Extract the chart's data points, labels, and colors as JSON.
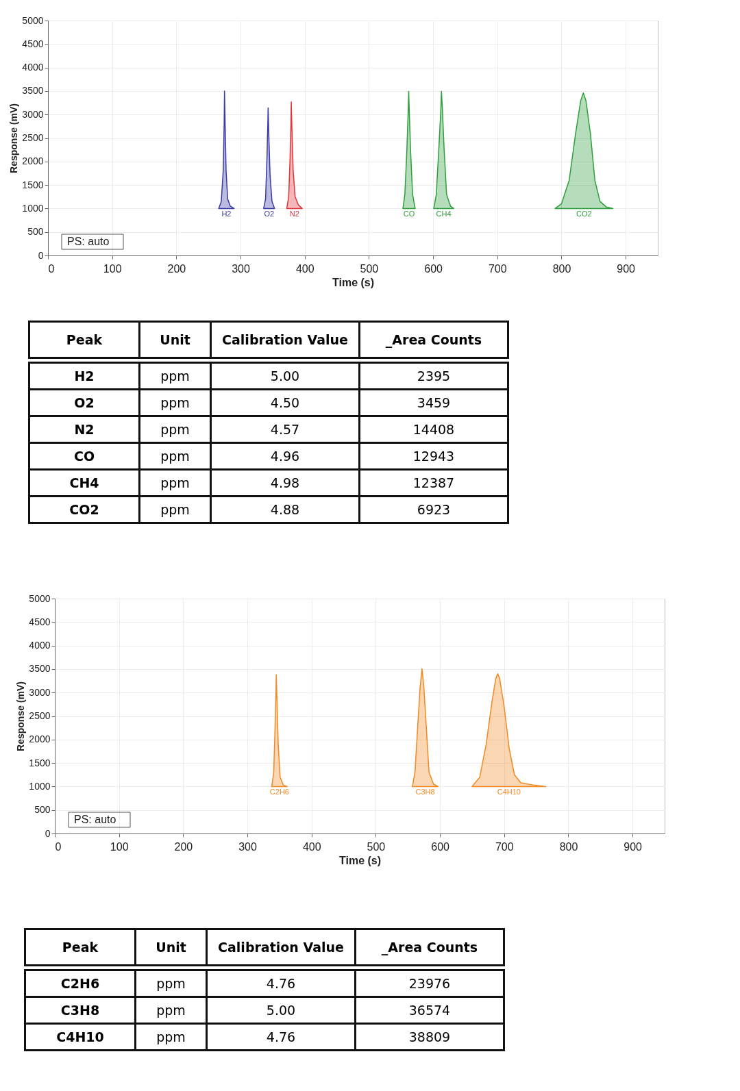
{
  "chart_data": [
    {
      "type": "area",
      "xlabel": "Time (s)",
      "ylabel": "Response (mV)",
      "xlim": [
        0,
        950
      ],
      "xticks": [
        0,
        100,
        200,
        300,
        400,
        500,
        600,
        700,
        800,
        900
      ],
      "ylim": [
        0,
        5000
      ],
      "yticks": [
        0,
        500,
        1000,
        1500,
        2000,
        2500,
        3000,
        3500,
        4000,
        4500,
        5000
      ],
      "grid": true,
      "annotations": [
        "PS: auto"
      ],
      "series": [
        {
          "name": "H2",
          "color": "#3b3ba6",
          "x": [
            266,
            270,
            273,
            274.5,
            275,
            276,
            277.5,
            280,
            284,
            290
          ],
          "values": [
            1000,
            1150,
            1800,
            2800,
            3500,
            2800,
            1800,
            1200,
            1050,
            1000
          ]
        },
        {
          "name": "O2",
          "color": "#3b3ba6",
          "x": [
            336,
            339,
            341,
            342.5,
            343,
            344,
            346,
            349,
            353
          ],
          "values": [
            1000,
            1200,
            2000,
            2800,
            3140,
            2600,
            1700,
            1150,
            1000
          ]
        },
        {
          "name": "N2",
          "color": "#e0353a",
          "x": [
            372,
            375,
            377,
            378.5,
            379,
            380,
            382,
            385,
            390,
            396
          ],
          "values": [
            1000,
            1250,
            2000,
            2800,
            3270,
            2700,
            1800,
            1250,
            1080,
            1000
          ]
        },
        {
          "name": "CO",
          "color": "#2f9e3c",
          "x": [
            553,
            556,
            559,
            561,
            562,
            563,
            565,
            568,
            572
          ],
          "values": [
            1000,
            1300,
            2200,
            3000,
            3490,
            3000,
            2200,
            1300,
            1000
          ]
        },
        {
          "name": "CH4",
          "color": "#2f9e3c",
          "x": [
            601,
            605,
            609,
            612,
            613,
            614.5,
            617,
            621,
            627,
            632
          ],
          "values": [
            1000,
            1300,
            2300,
            3100,
            3490,
            3100,
            2300,
            1300,
            1050,
            1000
          ]
        },
        {
          "name": "CO2",
          "color": "#2f9e3c",
          "x": [
            790,
            800,
            812,
            822,
            830,
            834,
            838,
            845,
            852,
            860,
            870,
            880
          ],
          "values": [
            1000,
            1100,
            1600,
            2600,
            3300,
            3460,
            3300,
            2600,
            1600,
            1150,
            1030,
            1000
          ]
        }
      ]
    },
    {
      "type": "other",
      "categories": [
        "Peak",
        "Unit",
        "Calibration Value",
        "_Area Counts"
      ],
      "y_categories": [
        "H2",
        "O2",
        "N2",
        "CO",
        "CH4",
        "CO2"
      ],
      "cell_labels": [
        [
          "ppm",
          "5.00",
          "2395"
        ],
        [
          "ppm",
          "4.50",
          "3459"
        ],
        [
          "ppm",
          "4.57",
          "14408"
        ],
        [
          "ppm",
          "4.96",
          "12943"
        ],
        [
          "ppm",
          "4.98",
          "12387"
        ],
        [
          "ppm",
          "4.88",
          "6923"
        ]
      ]
    },
    {
      "type": "area",
      "xlabel": "Time (s)",
      "ylabel": "Response (mV)",
      "xlim": [
        0,
        950
      ],
      "xticks": [
        0,
        100,
        200,
        300,
        400,
        500,
        600,
        700,
        800,
        900
      ],
      "ylim": [
        0,
        5000
      ],
      "yticks": [
        0,
        500,
        1000,
        1500,
        2000,
        2500,
        3000,
        3500,
        4000,
        4500,
        5000
      ],
      "grid": true,
      "annotations": [
        "PS: auto"
      ],
      "series": [
        {
          "name": "C2H6",
          "color": "#f08a24",
          "x": [
            338,
            341,
            343,
            344.5,
            345,
            346,
            348,
            351,
            356,
            362
          ],
          "values": [
            1000,
            1300,
            2200,
            3000,
            3380,
            2900,
            1900,
            1200,
            1030,
            1000
          ]
        },
        {
          "name": "C3H8",
          "color": "#f08a24",
          "x": [
            557,
            561,
            565,
            569,
            572,
            575,
            579,
            583,
            590,
            597
          ],
          "values": [
            1000,
            1300,
            2200,
            3100,
            3510,
            3100,
            2200,
            1300,
            1050,
            1000
          ]
        },
        {
          "name": "C4H10",
          "color": "#f08a24",
          "x": [
            650,
            662,
            672,
            681,
            687,
            690,
            693,
            700,
            708,
            716,
            726,
            745,
            765
          ],
          "values": [
            1000,
            1200,
            1900,
            2800,
            3300,
            3400,
            3300,
            2700,
            1800,
            1250,
            1080,
            1030,
            1000
          ]
        }
      ]
    },
    {
      "type": "other",
      "categories": [
        "Peak",
        "Unit",
        "Calibration Value",
        "_Area Counts"
      ],
      "y_categories": [
        "C2H6",
        "C3H8",
        "C4H10"
      ],
      "cell_labels": [
        [
          "ppm",
          "4.76",
          "23976"
        ],
        [
          "ppm",
          "5.00",
          "36574"
        ],
        [
          "ppm",
          "4.76",
          "38809"
        ]
      ]
    }
  ]
}
